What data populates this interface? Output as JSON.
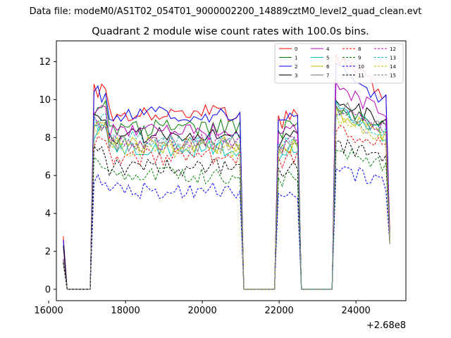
{
  "header": {
    "data_file": "Data file: modeM0/AS1T02_054T01_9000002200_14889cztM0_level2_quad_clean.evt"
  },
  "chart_data": {
    "type": "line",
    "title": "Quadrant 2 module wise count rates with 100.0s bins.",
    "xlabel": "",
    "ylabel": "",
    "x_offset_label": "+2.68e8",
    "xlim": [
      16200,
      25300
    ],
    "ylim": [
      -0.6,
      13.1
    ],
    "xticks": [
      16000,
      18000,
      20000,
      22000,
      24000
    ],
    "yticks": [
      0,
      2,
      4,
      6,
      8,
      10,
      12
    ],
    "grid": false,
    "legend_placement": "top-right",
    "segments": [
      {
        "type": "edge",
        "x0": 16380,
        "x1": 16480,
        "at": "start"
      },
      {
        "type": "zero",
        "x0": 16480,
        "x1": 17080
      },
      {
        "type": "active",
        "x0": 17080,
        "x1": 21020
      },
      {
        "type": "zero",
        "x0": 21080,
        "x1": 21880
      },
      {
        "type": "active",
        "x0": 21880,
        "x1": 22400
      },
      {
        "type": "zero",
        "x0": 22580,
        "x1": 23380
      },
      {
        "type": "active",
        "x0": 23380,
        "x1": 24880
      },
      {
        "type": "edge",
        "x0": 24880,
        "x1": 24880,
        "at": "end"
      }
    ],
    "series": [
      {
        "name": "0",
        "color": "#ff0000",
        "dash": false,
        "level": 9.3,
        "start": 2.8,
        "end": 3.0,
        "peak3": 12.4
      },
      {
        "name": "1",
        "color": "#008000",
        "dash": false,
        "level": 8.5,
        "start": 1.6,
        "end": 2.8,
        "peak3": 9.4
      },
      {
        "name": "2",
        "color": "#0000ff",
        "dash": false,
        "level": 9.2,
        "start": 2.6,
        "end": 2.7,
        "peak3": 11.6
      },
      {
        "name": "3",
        "color": "#000000",
        "dash": false,
        "level": 8.1,
        "start": 2.3,
        "end": 2.5,
        "peak3": 10.0
      },
      {
        "name": "4",
        "color": "#c000c0",
        "dash": false,
        "level": 8.3,
        "start": 1.6,
        "end": 2.5,
        "peak3": 10.9
      },
      {
        "name": "5",
        "color": "#00bfbf",
        "dash": false,
        "level": 7.4,
        "start": 1.5,
        "end": 2.4,
        "peak3": 9.6
      },
      {
        "name": "6",
        "color": "#bfbf00",
        "dash": false,
        "level": 7.6,
        "start": 1.5,
        "end": 2.4,
        "peak3": 9.2
      },
      {
        "name": "7",
        "color": "#808080",
        "dash": false,
        "level": 7.7,
        "start": 1.5,
        "end": 2.4,
        "peak3": 9.8
      },
      {
        "name": "8",
        "color": "#ff0000",
        "dash": true,
        "level": 7.0,
        "start": 1.4,
        "end": 2.4,
        "peak3": 8.5
      },
      {
        "name": "9",
        "color": "#008000",
        "dash": true,
        "level": 6.0,
        "start": 1.4,
        "end": 2.4,
        "peak3": 7.4
      },
      {
        "name": "10",
        "color": "#0000ff",
        "dash": true,
        "level": 5.2,
        "start": 1.4,
        "end": 2.4,
        "peak3": 6.4
      },
      {
        "name": "11",
        "color": "#000000",
        "dash": true,
        "level": 6.4,
        "start": 1.4,
        "end": 2.4,
        "peak3": 7.7
      },
      {
        "name": "12",
        "color": "#c000c0",
        "dash": true,
        "level": 7.8,
        "start": 1.5,
        "end": 2.4,
        "peak3": 9.5
      },
      {
        "name": "13",
        "color": "#00bfbf",
        "dash": true,
        "level": 7.9,
        "start": 1.5,
        "end": 2.4,
        "peak3": 9.4
      },
      {
        "name": "14",
        "color": "#bfbf00",
        "dash": true,
        "level": 7.4,
        "start": 1.5,
        "end": 2.4,
        "peak3": 9.0
      },
      {
        "name": "15",
        "color": "#808080",
        "dash": true,
        "level": 7.6,
        "start": 1.5,
        "end": 2.4,
        "peak3": 9.2
      }
    ]
  }
}
